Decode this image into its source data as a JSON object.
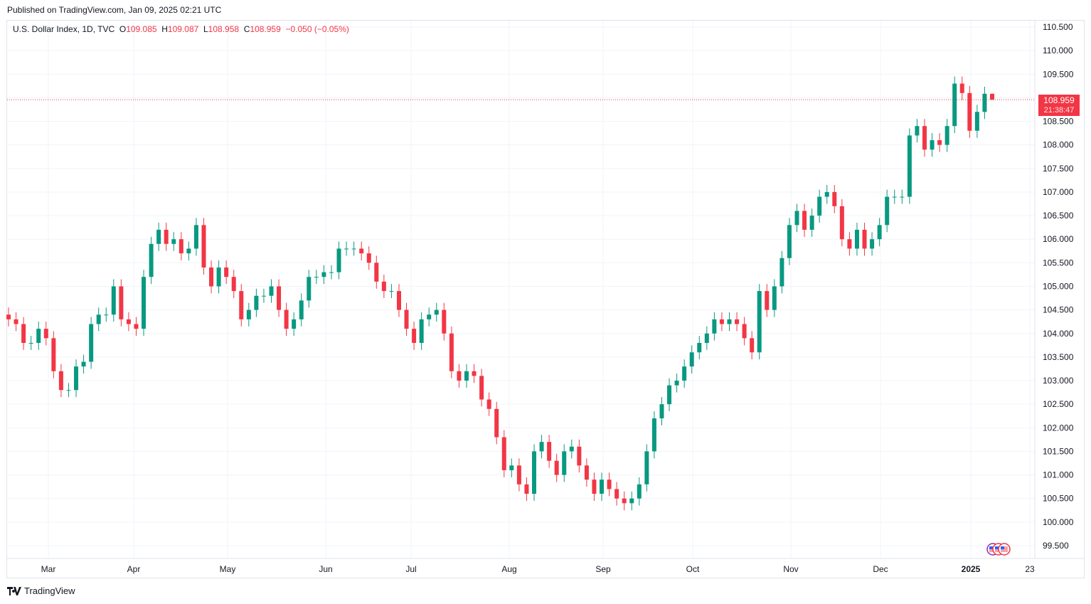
{
  "published": "Published on TradingView.com, Jan 09, 2025 02:21 UTC",
  "legend": {
    "symbol": "U.S. Dollar Index, 1D, TVC",
    "o_label": "O",
    "o": "109.085",
    "h_label": "H",
    "h": "109.087",
    "l_label": "L",
    "l": "108.958",
    "c_label": "C",
    "c": "108.959",
    "change": "−0.050 (−0.05%)"
  },
  "price_label": {
    "value": "108.959",
    "countdown": "21:38:47"
  },
  "footer": {
    "brand": "TradingView"
  },
  "colors": {
    "up": "#089981",
    "down": "#f23645",
    "grid": "#f0f3fa"
  },
  "chart_data": {
    "type": "candlestick",
    "title": "U.S. Dollar Index, 1D, TVC",
    "ylim": [
      99.3,
      110.65
    ],
    "y_ticks": [
      "110.500",
      "110.000",
      "109.500",
      "109.000",
      "108.500",
      "108.000",
      "107.500",
      "107.000",
      "106.500",
      "106.000",
      "105.500",
      "105.000",
      "104.500",
      "104.000",
      "103.500",
      "103.000",
      "102.500",
      "102.000",
      "101.500",
      "101.000",
      "100.500",
      "100.000",
      "99.500"
    ],
    "x_ticks": [
      "Mar",
      "Apr",
      "May",
      "Jun",
      "Jul",
      "Aug",
      "Sep",
      "Oct",
      "Nov",
      "Dec",
      "2025",
      "23"
    ],
    "closes": [
      104.3,
      104.2,
      103.8,
      103.8,
      104.1,
      103.9,
      103.2,
      102.8,
      102.8,
      103.3,
      103.4,
      104.2,
      104.4,
      104.4,
      105.0,
      104.3,
      104.2,
      104.1,
      105.2,
      105.9,
      106.2,
      105.9,
      106.0,
      105.7,
      105.8,
      106.3,
      105.4,
      105.0,
      105.4,
      105.2,
      104.9,
      104.3,
      104.5,
      104.8,
      104.8,
      105.0,
      104.5,
      104.1,
      104.3,
      104.7,
      105.2,
      105.2,
      105.3,
      105.3,
      105.8,
      105.8,
      105.8,
      105.7,
      105.5,
      105.1,
      104.9,
      104.9,
      104.5,
      104.1,
      103.8,
      104.3,
      104.4,
      104.5,
      104.0,
      103.2,
      103.0,
      103.2,
      103.1,
      102.6,
      102.4,
      101.8,
      101.1,
      101.2,
      100.8,
      100.6,
      101.5,
      101.7,
      101.3,
      101.0,
      101.5,
      101.6,
      101.2,
      100.9,
      100.6,
      100.9,
      100.7,
      100.5,
      100.4,
      100.5,
      100.8,
      101.5,
      102.2,
      102.5,
      102.9,
      103.0,
      103.3,
      103.6,
      103.8,
      104.0,
      104.3,
      104.2,
      104.3,
      104.2,
      103.9,
      103.6,
      104.9,
      104.5,
      105.0,
      105.6,
      106.3,
      106.6,
      106.2,
      106.5,
      106.9,
      107.0,
      106.7,
      106.0,
      105.8,
      106.2,
      105.8,
      106.0,
      106.3,
      106.9,
      106.9,
      106.9,
      108.2,
      108.4,
      107.9,
      108.1,
      108.0,
      108.4,
      109.3,
      109.1,
      108.3,
      108.7,
      109.085
    ],
    "last_candle": {
      "open": 109.085,
      "high": 109.087,
      "low": 108.958,
      "close": 108.959
    },
    "last_price": 108.959
  }
}
